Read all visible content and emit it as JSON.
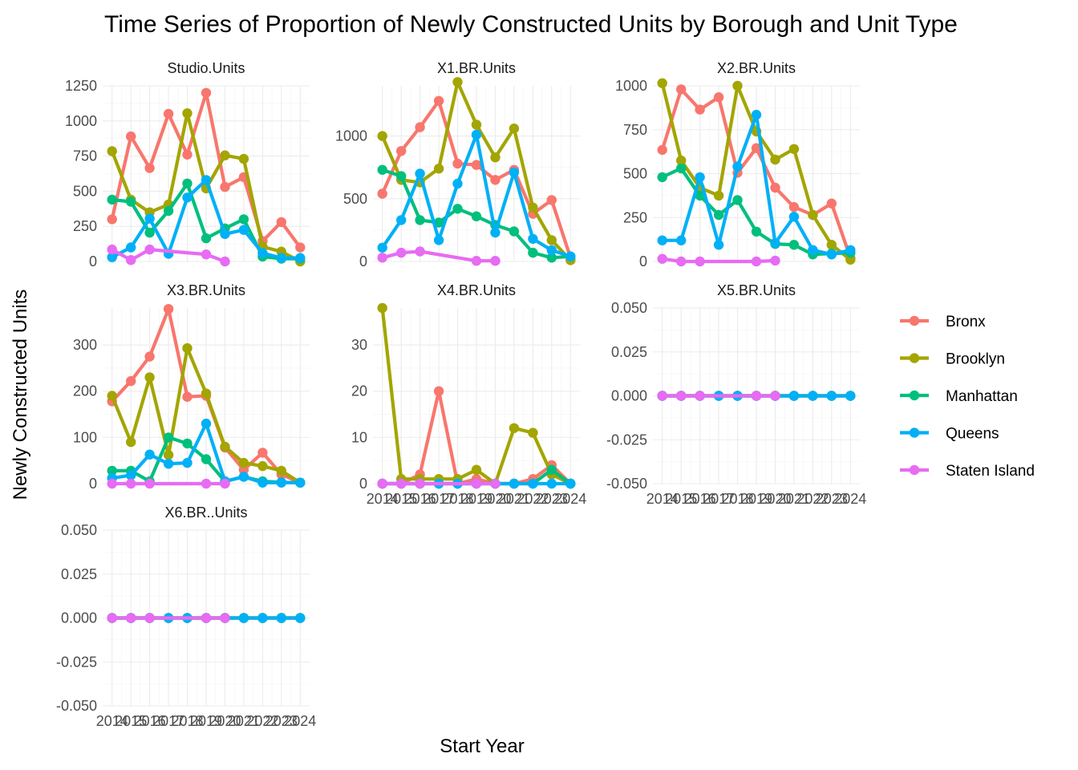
{
  "chart_data": {
    "type": "line",
    "title": "Time Series of Proportion of Newly Constructed Units by Borough and Unit Type",
    "xlabel": "Start Year",
    "ylabel": "Newly Constructed Units",
    "x": [
      2014,
      2015,
      2016,
      2017,
      2018,
      2019,
      2020,
      2021,
      2022,
      2023,
      2024
    ],
    "x_tick_labels": [
      "2014",
      "2015",
      "2016",
      "2017",
      "2018",
      "2019",
      "2020",
      "2021",
      "2022",
      "2023",
      "2024"
    ],
    "grid": true,
    "legend_position": "right",
    "colors": {
      "Bronx": "#F8766D",
      "Brooklyn": "#A3A500",
      "Manhattan": "#00BF7D",
      "Queens": "#00B0F6",
      "Staten Island": "#E76BF3"
    },
    "legend": [
      "Bronx",
      "Brooklyn",
      "Manhattan",
      "Queens",
      "Staten Island"
    ],
    "panels": [
      {
        "name": "Studio.Units",
        "ylim": [
          0,
          1250
        ],
        "yticks": [
          0,
          250,
          500,
          750,
          1000,
          1250
        ],
        "y_tick_labels": [
          "0",
          "250",
          "500",
          "750",
          "1000",
          "1250"
        ],
        "series": [
          {
            "name": "Bronx",
            "values": [
              300,
              890,
              665,
              1050,
              760,
              1200,
              530,
              600,
              145,
              280,
              100
            ]
          },
          {
            "name": "Brooklyn",
            "values": [
              785,
              440,
              350,
              405,
              1055,
              520,
              755,
              730,
              105,
              70,
              0
            ]
          },
          {
            "name": "Manhattan",
            "values": [
              440,
              425,
              205,
              360,
              555,
              165,
              235,
              300,
              35,
              20,
              20
            ]
          },
          {
            "name": "Queens",
            "values": [
              30,
              100,
              305,
              55,
              455,
              580,
              195,
              225,
              60,
              25,
              25
            ]
          },
          {
            "name": "Staten Island",
            "values": [
              85,
              10,
              85,
              null,
              null,
              50,
              0,
              null,
              null,
              null,
              null
            ]
          }
        ]
      },
      {
        "name": "X1.BR.Units",
        "ylim": [
          0,
          1400
        ],
        "yticks": [
          0,
          500,
          1000
        ],
        "y_tick_labels": [
          "0",
          "500",
          "1000"
        ],
        "series": [
          {
            "name": "Bronx",
            "values": [
              540,
              880,
              1070,
              1280,
              780,
              770,
              650,
              730,
              380,
              490,
              30
            ]
          },
          {
            "name": "Brooklyn",
            "values": [
              1000,
              650,
              630,
              740,
              1430,
              1090,
              830,
              1060,
              430,
              170,
              10
            ]
          },
          {
            "name": "Manhattan",
            "values": [
              730,
              680,
              330,
              310,
              420,
              360,
              290,
              240,
              70,
              30,
              40
            ]
          },
          {
            "name": "Queens",
            "values": [
              110,
              330,
              700,
              170,
              620,
              1010,
              230,
              710,
              180,
              90,
              40
            ]
          },
          {
            "name": "Staten Island",
            "values": [
              30,
              70,
              80,
              null,
              null,
              5,
              5,
              null,
              null,
              null,
              null
            ]
          }
        ]
      },
      {
        "name": "X2.BR.Units",
        "ylim": [
          0,
          1000
        ],
        "yticks": [
          0,
          250,
          500,
          750,
          1000
        ],
        "y_tick_labels": [
          "0",
          "250",
          "500",
          "750",
          "1000"
        ],
        "series": [
          {
            "name": "Bronx",
            "values": [
              635,
              980,
              865,
              935,
              505,
              645,
              420,
              310,
              265,
              330,
              20
            ]
          },
          {
            "name": "Brooklyn",
            "values": [
              1015,
              575,
              420,
              375,
              1000,
              740,
              580,
              640,
              265,
              95,
              10
            ]
          },
          {
            "name": "Manhattan",
            "values": [
              480,
              530,
              375,
              265,
              350,
              170,
              100,
              95,
              40,
              45,
              50
            ]
          },
          {
            "name": "Queens",
            "values": [
              120,
              120,
              480,
              95,
              540,
              835,
              105,
              255,
              65,
              40,
              65
            ]
          },
          {
            "name": "Staten Island",
            "values": [
              15,
              0,
              0,
              null,
              null,
              0,
              5,
              null,
              null,
              null,
              null
            ]
          }
        ]
      },
      {
        "name": "X3.BR.Units",
        "ylim": [
          0,
          380
        ],
        "yticks": [
          0,
          100,
          200,
          300
        ],
        "y_tick_labels": [
          "0",
          "100",
          "200",
          "300"
        ],
        "series": [
          {
            "name": "Bronx",
            "values": [
              178,
              222,
              275,
              378,
              188,
              190,
              78,
              30,
              67,
              20,
              2
            ]
          },
          {
            "name": "Brooklyn",
            "values": [
              190,
              90,
              230,
              62,
              293,
              195,
              80,
              45,
              38,
              28,
              2
            ]
          },
          {
            "name": "Manhattan",
            "values": [
              28,
              28,
              5,
              100,
              87,
              53,
              5,
              15,
              5,
              3,
              2
            ]
          },
          {
            "name": "Queens",
            "values": [
              12,
              18,
              63,
              43,
              45,
              130,
              5,
              15,
              2,
              2,
              2
            ]
          },
          {
            "name": "Staten Island",
            "values": [
              0,
              0,
              0,
              null,
              null,
              0,
              0,
              null,
              null,
              null,
              null
            ]
          }
        ]
      },
      {
        "name": "X4.BR.Units",
        "ylim": [
          0,
          38
        ],
        "yticks": [
          0,
          10,
          20,
          30
        ],
        "y_tick_labels": [
          "0",
          "10",
          "20",
          "30"
        ],
        "series": [
          {
            "name": "Bronx",
            "values": [
              0,
              0,
              2,
              20,
              0,
              1,
              0,
              0,
              1,
              4,
              0
            ]
          },
          {
            "name": "Brooklyn",
            "values": [
              38,
              1,
              1,
              1,
              1,
              3,
              0,
              12,
              11,
              2,
              0
            ]
          },
          {
            "name": "Manhattan",
            "values": [
              0,
              0,
              0,
              0,
              0,
              0,
              0,
              0,
              0,
              3,
              0
            ]
          },
          {
            "name": "Queens",
            "values": [
              0,
              0,
              0,
              0,
              0,
              0,
              0,
              0,
              0,
              0,
              0
            ]
          },
          {
            "name": "Staten Island",
            "values": [
              0,
              0,
              0,
              null,
              null,
              0,
              0,
              null,
              null,
              null,
              null
            ]
          }
        ]
      },
      {
        "name": "X5.BR.Units",
        "ylim": [
          -0.05,
          0.05
        ],
        "yticks": [
          -0.05,
          -0.025,
          0,
          0.025,
          0.05
        ],
        "y_tick_labels": [
          "-0.050",
          "-0.025",
          "0.000",
          "0.025",
          "0.050"
        ],
        "series": [
          {
            "name": "Bronx",
            "values": [
              0,
              0,
              0,
              0,
              0,
              0,
              0,
              0,
              0,
              0,
              0
            ]
          },
          {
            "name": "Brooklyn",
            "values": [
              0,
              0,
              0,
              0,
              0,
              0,
              0,
              0,
              0,
              0,
              0
            ]
          },
          {
            "name": "Manhattan",
            "values": [
              0,
              0,
              0,
              0,
              0,
              0,
              0,
              0,
              0,
              0,
              0
            ]
          },
          {
            "name": "Queens",
            "values": [
              0,
              0,
              0,
              0,
              0,
              0,
              0,
              0,
              0,
              0,
              0
            ]
          },
          {
            "name": "Staten Island",
            "values": [
              0,
              0,
              0,
              null,
              null,
              0,
              0,
              null,
              null,
              null,
              null
            ]
          }
        ]
      },
      {
        "name": "X6.BR..Units",
        "ylim": [
          -0.05,
          0.05
        ],
        "yticks": [
          -0.05,
          -0.025,
          0,
          0.025,
          0.05
        ],
        "y_tick_labels": [
          "-0.050",
          "-0.025",
          "0.000",
          "0.025",
          "0.050"
        ],
        "series": [
          {
            "name": "Bronx",
            "values": [
              0,
              0,
              0,
              0,
              0,
              0,
              0,
              0,
              0,
              0,
              0
            ]
          },
          {
            "name": "Brooklyn",
            "values": [
              0,
              0,
              0,
              0,
              0,
              0,
              0,
              0,
              0,
              0,
              0
            ]
          },
          {
            "name": "Manhattan",
            "values": [
              0,
              0,
              0,
              0,
              0,
              0,
              0,
              0,
              0,
              0,
              0
            ]
          },
          {
            "name": "Queens",
            "values": [
              0,
              0,
              0,
              0,
              0,
              0,
              0,
              0,
              0,
              0,
              0
            ]
          },
          {
            "name": "Staten Island",
            "values": [
              0,
              0,
              0,
              null,
              null,
              0,
              0,
              null,
              null,
              null,
              null
            ]
          }
        ]
      }
    ]
  }
}
